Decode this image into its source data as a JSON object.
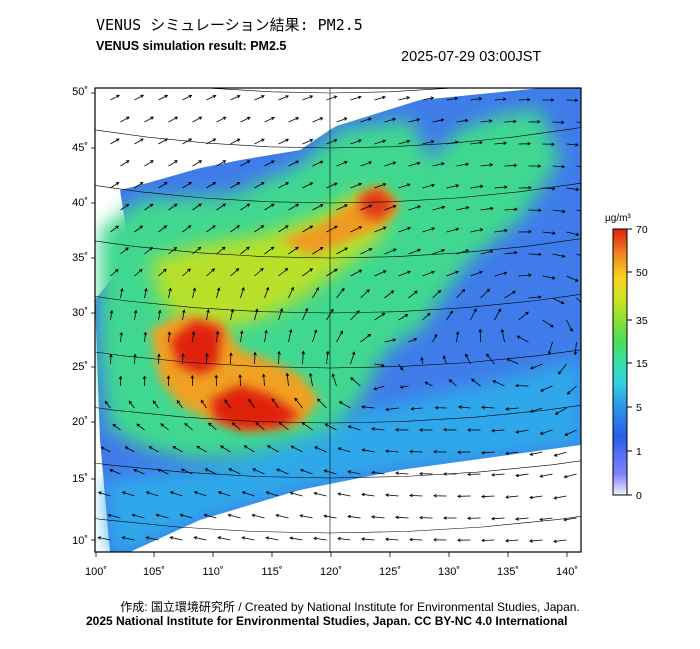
{
  "header": {
    "title_ja": "VENUS シミュレーション結果: PM2.5",
    "title_en": "VENUS simulation result: PM2.5",
    "timestamp": "2025-07-29 03:00JST"
  },
  "axes": {
    "lat_labels": [
      "50˚",
      "45˚",
      "40˚",
      "35˚",
      "30˚",
      "25˚",
      "20˚",
      "15˚",
      "10˚"
    ],
    "lon_labels": [
      "100˚",
      "105˚",
      "110˚",
      "115˚",
      "120˚",
      "125˚",
      "130˚",
      "135˚",
      "140˚"
    ],
    "lat_values": [
      50,
      45,
      40,
      35,
      30,
      25,
      20,
      15,
      10
    ],
    "lon_values": [
      100,
      105,
      110,
      115,
      120,
      125,
      130,
      135,
      140
    ]
  },
  "colorbar": {
    "unit": "µg/m³",
    "tick_labels": [
      "70",
      "50",
      "35",
      "15",
      "5",
      "1",
      "0"
    ],
    "colors": [
      "#e8e8f8",
      "#7070ff",
      "#2a5ee8",
      "#2b9bea",
      "#2fd0e0",
      "#37e0a5",
      "#4ddc5a",
      "#8fe032",
      "#d0e424",
      "#f8d020",
      "#f8a020",
      "#f06018",
      "#e02010"
    ]
  },
  "footer": {
    "credit": "作成: 国立環境研究所 / Created by National Institute for Environmental Studies, Japan.",
    "copyright": "2025 National Institute for Environmental Studies, Japan. CC BY-NC 4.0 International"
  },
  "colors": {
    "frame": "#000000",
    "grid": "#000000",
    "high_pm": "#e02010",
    "low_pm": "#2a5ee8"
  }
}
